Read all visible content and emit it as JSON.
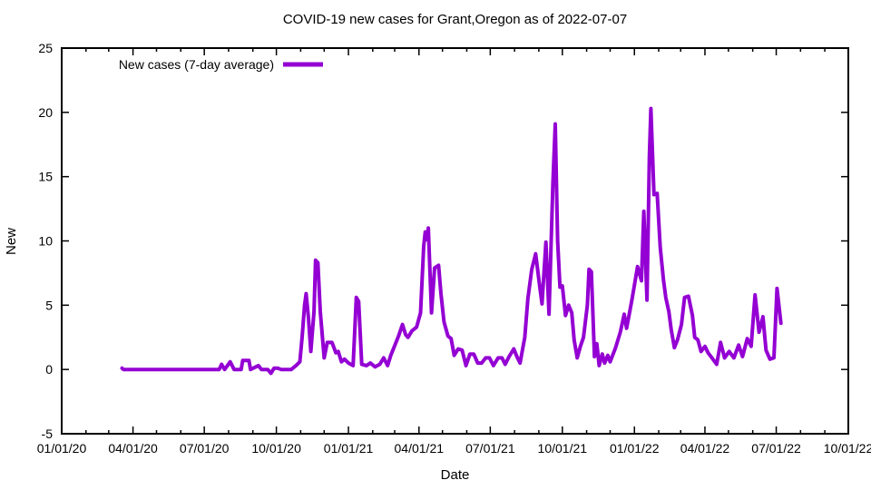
{
  "title": "COVID-19 new cases for Grant,Oregon as of 2022-07-07",
  "colors": {
    "line": "#9400d3",
    "text": "#000000",
    "border": "#000000",
    "background": "#ffffff"
  },
  "chart_data": {
    "type": "line",
    "title": "COVID-19 new cases for Grant,Oregon as of 2022-07-07",
    "xlabel": "Date",
    "ylabel": "New",
    "grid": false,
    "legend": {
      "position": "top-left-inside",
      "entries": [
        {
          "label": "New cases (7-day average)",
          "color": "#9400d3"
        }
      ]
    },
    "xlim": [
      "2020-01-01",
      "2022-10-01"
    ],
    "ylim": [
      -5,
      25
    ],
    "y_ticks": [
      -5,
      0,
      5,
      10,
      15,
      20,
      25
    ],
    "x_major_ticks": [
      {
        "date": "2020-01-01",
        "label": "01/01/20"
      },
      {
        "date": "2020-04-01",
        "label": "04/01/20"
      },
      {
        "date": "2020-07-01",
        "label": "07/01/20"
      },
      {
        "date": "2020-10-01",
        "label": "10/01/20"
      },
      {
        "date": "2021-01-01",
        "label": "01/01/21"
      },
      {
        "date": "2021-04-01",
        "label": "04/01/21"
      },
      {
        "date": "2021-07-01",
        "label": "07/01/21"
      },
      {
        "date": "2021-10-01",
        "label": "10/01/21"
      },
      {
        "date": "2022-01-01",
        "label": "01/01/22"
      },
      {
        "date": "2022-04-01",
        "label": "04/01/22"
      },
      {
        "date": "2022-07-01",
        "label": "07/01/22"
      },
      {
        "date": "2022-10-01",
        "label": "10/01/22"
      }
    ],
    "x_minor_tick_unit": "month",
    "series": [
      {
        "name": "New cases (7-day average)",
        "color": "#9400d3",
        "points": [
          [
            "2020-03-18",
            0.1
          ],
          [
            "2020-03-20",
            0.0
          ],
          [
            "2020-07-20",
            0.0
          ],
          [
            "2020-07-23",
            0.4
          ],
          [
            "2020-07-27",
            0.0
          ],
          [
            "2020-08-03",
            0.6
          ],
          [
            "2020-08-08",
            0.0
          ],
          [
            "2020-08-17",
            0.0
          ],
          [
            "2020-08-19",
            0.7
          ],
          [
            "2020-08-27",
            0.7
          ],
          [
            "2020-08-29",
            0.0
          ],
          [
            "2020-09-08",
            0.3
          ],
          [
            "2020-09-12",
            0.0
          ],
          [
            "2020-09-20",
            0.0
          ],
          [
            "2020-09-24",
            -0.3
          ],
          [
            "2020-09-28",
            0.1
          ],
          [
            "2020-10-03",
            0.1
          ],
          [
            "2020-10-07",
            0.0
          ],
          [
            "2020-10-20",
            0.0
          ],
          [
            "2020-10-26",
            0.3
          ],
          [
            "2020-10-31",
            0.6
          ],
          [
            "2020-11-03",
            2.6
          ],
          [
            "2020-11-06",
            5.0
          ],
          [
            "2020-11-08",
            5.9
          ],
          [
            "2020-11-11",
            4.0
          ],
          [
            "2020-11-14",
            1.4
          ],
          [
            "2020-11-18",
            4.5
          ],
          [
            "2020-11-20",
            8.5
          ],
          [
            "2020-11-23",
            8.3
          ],
          [
            "2020-11-26",
            4.5
          ],
          [
            "2020-12-01",
            0.9
          ],
          [
            "2020-12-05",
            2.1
          ],
          [
            "2020-12-11",
            2.1
          ],
          [
            "2020-12-16",
            1.3
          ],
          [
            "2020-12-19",
            1.4
          ],
          [
            "2020-12-23",
            0.6
          ],
          [
            "2020-12-27",
            0.8
          ],
          [
            "2021-01-01",
            0.5
          ],
          [
            "2021-01-07",
            0.3
          ],
          [
            "2021-01-11",
            5.6
          ],
          [
            "2021-01-14",
            5.3
          ],
          [
            "2021-01-18",
            0.4
          ],
          [
            "2021-01-24",
            0.3
          ],
          [
            "2021-01-29",
            0.5
          ],
          [
            "2021-02-04",
            0.2
          ],
          [
            "2021-02-10",
            0.4
          ],
          [
            "2021-02-15",
            0.9
          ],
          [
            "2021-02-20",
            0.3
          ],
          [
            "2021-02-24",
            1.1
          ],
          [
            "2021-03-02",
            2.0
          ],
          [
            "2021-03-06",
            2.6
          ],
          [
            "2021-03-11",
            3.5
          ],
          [
            "2021-03-15",
            2.7
          ],
          [
            "2021-03-18",
            2.5
          ],
          [
            "2021-03-23",
            3.0
          ],
          [
            "2021-03-29",
            3.3
          ],
          [
            "2021-04-03",
            4.4
          ],
          [
            "2021-04-07",
            9.6
          ],
          [
            "2021-04-09",
            10.7
          ],
          [
            "2021-04-11",
            10.1
          ],
          [
            "2021-04-13",
            11.0
          ],
          [
            "2021-04-17",
            4.4
          ],
          [
            "2021-04-21",
            7.9
          ],
          [
            "2021-04-26",
            8.1
          ],
          [
            "2021-04-29",
            5.9
          ],
          [
            "2021-05-03",
            3.7
          ],
          [
            "2021-05-08",
            2.6
          ],
          [
            "2021-05-12",
            2.4
          ],
          [
            "2021-05-16",
            1.1
          ],
          [
            "2021-05-21",
            1.6
          ],
          [
            "2021-05-26",
            1.5
          ],
          [
            "2021-05-31",
            0.3
          ],
          [
            "2021-06-05",
            1.2
          ],
          [
            "2021-06-10",
            1.2
          ],
          [
            "2021-06-15",
            0.5
          ],
          [
            "2021-06-20",
            0.5
          ],
          [
            "2021-06-25",
            0.9
          ],
          [
            "2021-06-30",
            0.9
          ],
          [
            "2021-07-05",
            0.3
          ],
          [
            "2021-07-11",
            0.9
          ],
          [
            "2021-07-16",
            0.9
          ],
          [
            "2021-07-20",
            0.4
          ],
          [
            "2021-07-25",
            1.0
          ],
          [
            "2021-07-31",
            1.6
          ],
          [
            "2021-08-04",
            1.0
          ],
          [
            "2021-08-08",
            0.5
          ],
          [
            "2021-08-14",
            2.5
          ],
          [
            "2021-08-18",
            5.5
          ],
          [
            "2021-08-23",
            7.8
          ],
          [
            "2021-08-28",
            9.0
          ],
          [
            "2021-09-02",
            6.5
          ],
          [
            "2021-09-05",
            5.1
          ],
          [
            "2021-09-10",
            9.9
          ],
          [
            "2021-09-14",
            4.3
          ],
          [
            "2021-09-19",
            14.5
          ],
          [
            "2021-09-22",
            19.1
          ],
          [
            "2021-09-25",
            10.0
          ],
          [
            "2021-09-28",
            6.4
          ],
          [
            "2021-10-01",
            6.5
          ],
          [
            "2021-10-05",
            4.2
          ],
          [
            "2021-10-09",
            5.0
          ],
          [
            "2021-10-13",
            4.4
          ],
          [
            "2021-10-16",
            2.3
          ],
          [
            "2021-10-20",
            0.9
          ],
          [
            "2021-10-24",
            1.8
          ],
          [
            "2021-10-28",
            2.5
          ],
          [
            "2021-11-02",
            5.0
          ],
          [
            "2021-11-04",
            7.8
          ],
          [
            "2021-11-07",
            7.6
          ],
          [
            "2021-11-11",
            1.0
          ],
          [
            "2021-11-14",
            2.0
          ],
          [
            "2021-11-17",
            0.3
          ],
          [
            "2021-11-21",
            1.2
          ],
          [
            "2021-11-24",
            0.5
          ],
          [
            "2021-11-28",
            1.1
          ],
          [
            "2021-12-01",
            0.6
          ],
          [
            "2021-12-08",
            1.7
          ],
          [
            "2021-12-14",
            2.9
          ],
          [
            "2021-12-19",
            4.3
          ],
          [
            "2021-12-22",
            3.2
          ],
          [
            "2021-12-26",
            4.5
          ],
          [
            "2021-12-29",
            5.5
          ],
          [
            "2022-01-05",
            8.0
          ],
          [
            "2022-01-10",
            6.9
          ],
          [
            "2022-01-13",
            12.3
          ],
          [
            "2022-01-17",
            5.4
          ],
          [
            "2022-01-20",
            16.5
          ],
          [
            "2022-01-22",
            20.3
          ],
          [
            "2022-01-26",
            13.6
          ],
          [
            "2022-01-30",
            13.7
          ],
          [
            "2022-02-03",
            9.5
          ],
          [
            "2022-02-07",
            7.0
          ],
          [
            "2022-02-10",
            5.6
          ],
          [
            "2022-02-14",
            4.5
          ],
          [
            "2022-02-17",
            3.1
          ],
          [
            "2022-02-21",
            1.7
          ],
          [
            "2022-02-25",
            2.3
          ],
          [
            "2022-03-02",
            3.5
          ],
          [
            "2022-03-06",
            5.6
          ],
          [
            "2022-03-11",
            5.7
          ],
          [
            "2022-03-16",
            4.2
          ],
          [
            "2022-03-19",
            2.5
          ],
          [
            "2022-03-23",
            2.3
          ],
          [
            "2022-03-27",
            1.4
          ],
          [
            "2022-04-01",
            1.8
          ],
          [
            "2022-04-05",
            1.3
          ],
          [
            "2022-04-10",
            0.9
          ],
          [
            "2022-04-16",
            0.4
          ],
          [
            "2022-04-21",
            2.1
          ],
          [
            "2022-04-26",
            0.9
          ],
          [
            "2022-05-02",
            1.4
          ],
          [
            "2022-05-08",
            0.9
          ],
          [
            "2022-05-14",
            1.9
          ],
          [
            "2022-05-19",
            1.0
          ],
          [
            "2022-05-25",
            2.4
          ],
          [
            "2022-05-30",
            1.8
          ],
          [
            "2022-06-04",
            5.8
          ],
          [
            "2022-06-09",
            2.9
          ],
          [
            "2022-06-14",
            4.1
          ],
          [
            "2022-06-18",
            1.5
          ],
          [
            "2022-06-23",
            0.8
          ],
          [
            "2022-06-28",
            0.9
          ],
          [
            "2022-07-02",
            6.3
          ],
          [
            "2022-07-07",
            3.6
          ]
        ]
      }
    ]
  }
}
